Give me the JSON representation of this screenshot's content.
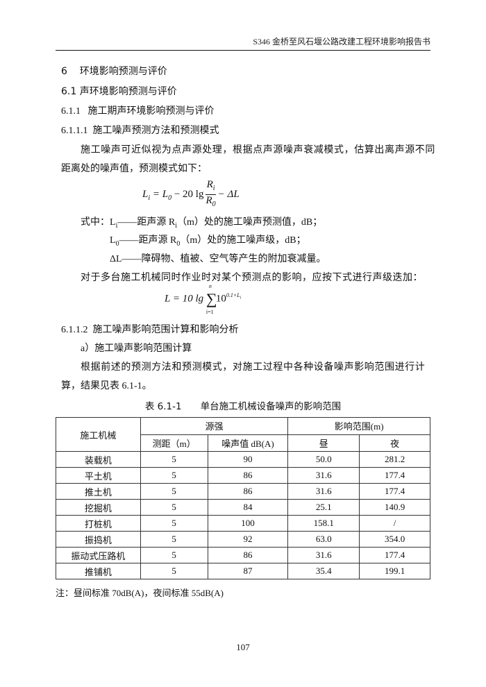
{
  "header": "S346 金桥至风石堰公路改建工程环境影响报告书",
  "h1": {
    "num": "6",
    "text": "环境影响预测与评价"
  },
  "h2": {
    "num": "6.1",
    "text": "声环境影响预测与评价"
  },
  "h3": {
    "num": "6.1.1",
    "text": "施工期声环境影响预测与评价"
  },
  "h4": {
    "num": "6.1.1.1",
    "text": "施工噪声预测方法和预测模式"
  },
  "para1": [
    "施工噪声可近似视为点声源处理，根据点声源噪声衰减模式，估算出离声源不同",
    "距离处的噪声值，预测模式如下："
  ],
  "formula1": {
    "lhs": "L",
    "lhs_sub": "i",
    "eq": "= L",
    "l0sub": "0",
    "mid": "− 20 lg",
    "num": "R",
    "num_sub": "i",
    "den": "R",
    "den_sub": "0",
    "tail": "− ΔL"
  },
  "defs": [
    {
      "prefix": "式中：",
      "sym": "L",
      "sub": "i",
      "text": "——距声源 R",
      "rsub": "i",
      "rest": "（m）处的施工噪声预测值，dB；"
    },
    {
      "sym": "L",
      "sub": "0",
      "text": "——距声源 R",
      "rsub": "0",
      "rest": "（m）处的施工噪声级，dB；"
    },
    {
      "sym": "ΔL",
      "text": "——障碍物、植被、空气等产生的附加衰减量。"
    }
  ],
  "para2": "对于多台施工机械同时作业时对某个预测点的影响，应按下式进行声级迭加：",
  "formula2": {
    "lhs": "L = 10 lg",
    "sum": "∑",
    "upper": "n",
    "lower": "i=1",
    "base": "10",
    "exp": "0.1×L",
    "exp_sub": "i"
  },
  "h5": {
    "num": "6.1.1.2",
    "text": "施工噪声影响范围计算和影响分析"
  },
  "sub_a": "a）施工噪声影响范围计算",
  "para3": [
    "根据前述的预测方法和预测模式，对施工过程中各种设备噪声影响范围进行计",
    "算，结果见表 6.1-1。"
  ],
  "table": {
    "caption": "表 6.1-1　　单台施工机械设备噪声的影响范围",
    "h_machine": "施工机械",
    "h_source": "源强",
    "h_range": "影响范围(m)",
    "h_dist": "测距（m）",
    "h_noise": "噪声值 dB(A)",
    "h_day": "昼",
    "h_night": "夜",
    "rows": [
      [
        "装载机",
        "5",
        "90",
        "50.0",
        "281.2"
      ],
      [
        "平土机",
        "5",
        "86",
        "31.6",
        "177.4"
      ],
      [
        "推土机",
        "5",
        "86",
        "31.6",
        "177.4"
      ],
      [
        "挖掘机",
        "5",
        "84",
        "25.1",
        "140.9"
      ],
      [
        "打桩机",
        "5",
        "100",
        "158.1",
        "/"
      ],
      [
        "振捣机",
        "5",
        "92",
        "63.0",
        "354.0"
      ],
      [
        "振动式压路机",
        "5",
        "86",
        "31.6",
        "177.4"
      ],
      [
        "推铺机",
        "5",
        "87",
        "35.4",
        "199.1"
      ]
    ]
  },
  "note": "注：昼间标准 70dB(A)，夜间标准 55dB(A)",
  "page_number": "107"
}
